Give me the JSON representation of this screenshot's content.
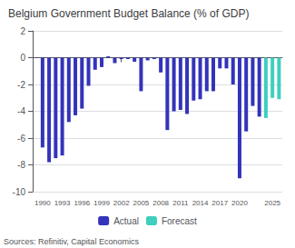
{
  "chart_data": {
    "type": "bar",
    "title": "Belgium Government Budget Balance (% of GDP)",
    "annotations": [
      "Sources: Refinitiv, Capital Economics"
    ],
    "series": [
      {
        "name": "Actual",
        "color": "#3333bb",
        "x": [
          1990,
          1991,
          1992,
          1993,
          1994,
          1995,
          1996,
          1997,
          1998,
          1999,
          2000,
          2001,
          2002,
          2003,
          2004,
          2005,
          2006,
          2007,
          2008,
          2009,
          2010,
          2011,
          2012,
          2013,
          2014,
          2015,
          2016,
          2017,
          2018,
          2019,
          2020,
          2021,
          2022,
          2023
        ],
        "values": [
          -6.7,
          -7.8,
          -7.5,
          -7.3,
          -4.8,
          -4.3,
          -3.8,
          -2.1,
          -0.9,
          -0.7,
          0.1,
          -0.4,
          -0.1,
          -0.1,
          -0.3,
          -2.5,
          -0.2,
          -0.1,
          -1.1,
          -5.4,
          -4.0,
          -3.9,
          -4.2,
          -3.2,
          -3.1,
          -2.5,
          -2.5,
          -0.8,
          -0.8,
          -2.0,
          -9.0,
          -5.5,
          -3.6,
          -4.4
        ]
      },
      {
        "name": "Forecast",
        "color": "#3ecfbe",
        "x": [
          2024,
          2025,
          2026
        ],
        "values": [
          -4.5,
          -3.0,
          -3.1
        ]
      }
    ],
    "xlim": [
      1988.5,
      2026.5
    ],
    "xticks": [
      1990,
      1993,
      1996,
      1999,
      2002,
      2005,
      2008,
      2011,
      2014,
      2017,
      2020,
      2025
    ],
    "ylim": [
      -10,
      2
    ],
    "yticks": [
      -10,
      -8,
      -6,
      -4,
      -2,
      0,
      2
    ],
    "grid": true,
    "legend": "bottom"
  }
}
